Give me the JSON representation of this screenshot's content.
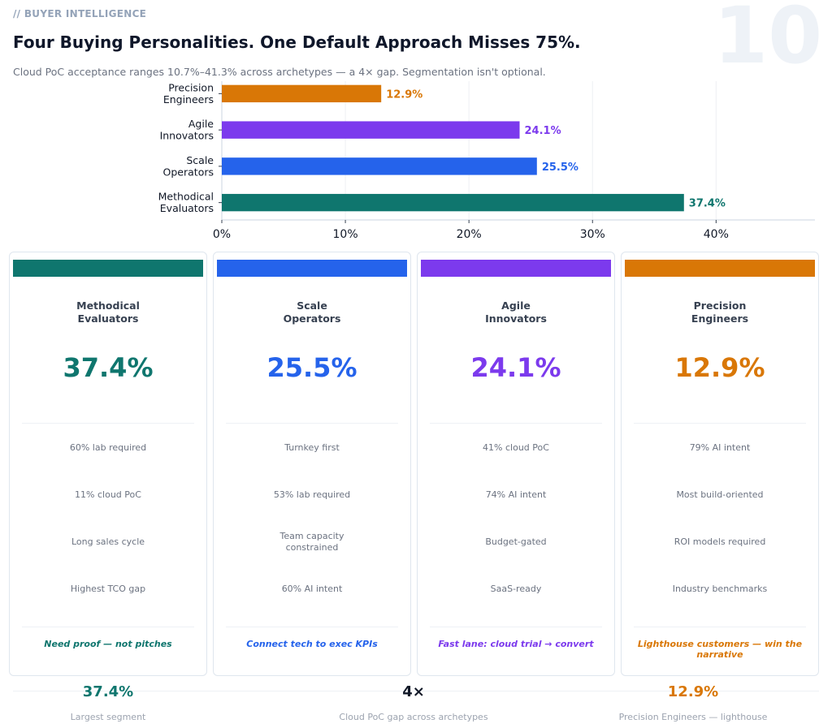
{
  "header": {
    "eyebrow": "// BUYER INTELLIGENCE",
    "slide_number": "10",
    "title": "Four Buying Personalities. One Default Approach Misses 75%.",
    "subtitle": "Cloud PoC acceptance ranges 10.7%–41.3% across archetypes — a 4× gap. Segmentation isn't optional."
  },
  "chart_data": {
    "type": "bar",
    "orientation": "horizontal",
    "categories": [
      "Precision Engineers",
      "Agile Innovators",
      "Scale Operators",
      "Methodical Evaluators"
    ],
    "category_lines": [
      [
        "Precision",
        "Engineers"
      ],
      [
        "Agile",
        "Innovators"
      ],
      [
        "Scale",
        "Operators"
      ],
      [
        "Methodical",
        "Evaluators"
      ]
    ],
    "values": [
      12.9,
      24.1,
      25.5,
      37.4
    ],
    "value_labels": [
      "12.9%",
      "24.1%",
      "25.5%",
      "37.4%"
    ],
    "colors": [
      "#d97706",
      "#7c3aed",
      "#2563eb",
      "#0f766e"
    ],
    "x_ticks": [
      0,
      10,
      20,
      30,
      40
    ],
    "x_tick_labels": [
      "0%",
      "10%",
      "20%",
      "30%",
      "40%"
    ],
    "xlim": [
      0,
      48
    ],
    "grid": "vertical",
    "legend": "none"
  },
  "cards": [
    {
      "name": "Methodical\nEvaluators",
      "value": "37.4%",
      "color": "#0f766e",
      "points": [
        "60% lab required",
        "11% cloud PoC",
        "Long sales cycle",
        "Highest TCO gap"
      ],
      "tagline": "Need proof — not pitches"
    },
    {
      "name": "Scale\nOperators",
      "value": "25.5%",
      "color": "#2563eb",
      "points": [
        "Turnkey first",
        "53% lab required",
        "Team capacity\nconstrained",
        "60% AI intent"
      ],
      "tagline": "Connect tech to exec KPIs"
    },
    {
      "name": "Agile\nInnovators",
      "value": "24.1%",
      "color": "#7c3aed",
      "points": [
        "41% cloud PoC",
        "74% AI intent",
        "Budget-gated",
        "SaaS-ready"
      ],
      "tagline": "Fast lane: cloud trial → convert"
    },
    {
      "name": "Precision\nEngineers",
      "value": "12.9%",
      "color": "#d97706",
      "points": [
        "79% AI intent",
        "Most build-oriented",
        "ROI models required",
        "Industry benchmarks"
      ],
      "tagline": "Lighthouse customers — win the narrative"
    }
  ],
  "stats": [
    {
      "value": "37.4%",
      "label": "Largest segment",
      "color": "#0f766e"
    },
    {
      "value": "4×",
      "label": "Cloud PoC gap across archetypes",
      "color": "#111827"
    },
    {
      "value": "12.9%",
      "label": "Precision Engineers — lighthouse",
      "color": "#d97706"
    }
  ]
}
